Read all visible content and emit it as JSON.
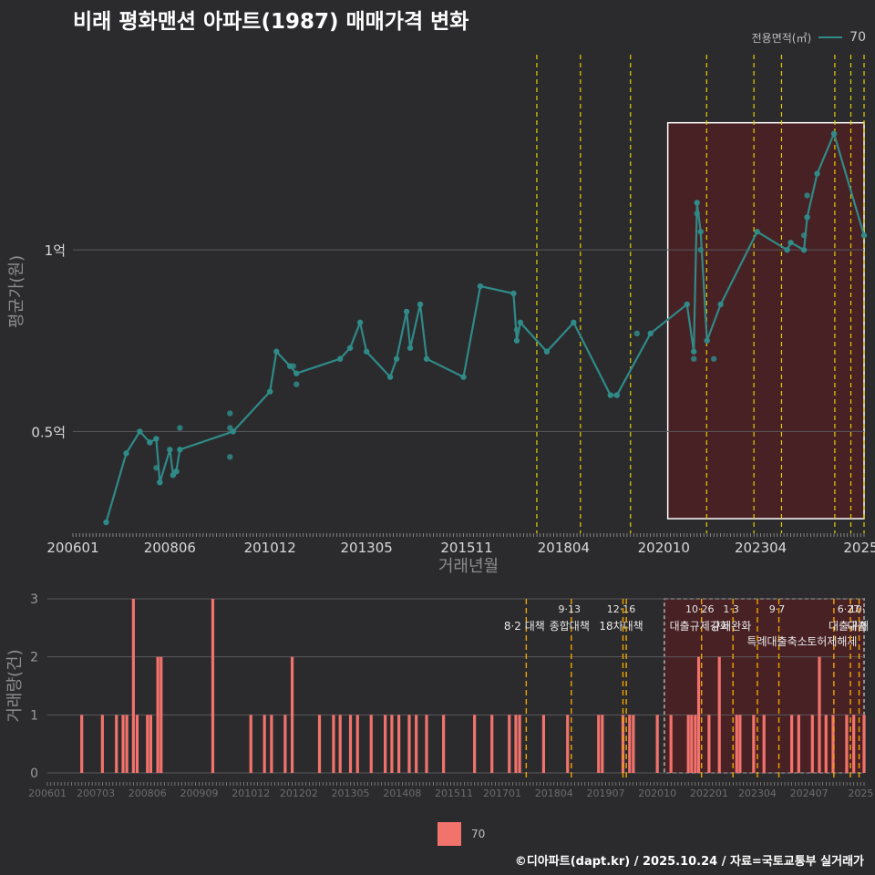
{
  "title": "비래 평화맨션 아파트(1987) 매매가격 변화",
  "legend_top": {
    "title": "전용면적(㎡)",
    "label": "70"
  },
  "legend_bottom": {
    "label": "70"
  },
  "footer": "©디아파트(dapt.kr) / 2025.10.24 / 자료=국토교통부 실거래가",
  "colors": {
    "background": "#2b2b2d",
    "line": "#2f8a88",
    "bar": "#f2726c",
    "vline": "#e6d000",
    "vline_bottom": "#f0a500",
    "highlight": "#4e2023"
  },
  "chart_data": [
    {
      "type": "line",
      "title": "비래 평화맨션 아파트(1987) 매매가격 변화",
      "xlabel": "거래년월",
      "ylabel": "평균가(원)",
      "ylim": [
        0.22,
        1.55
      ],
      "yticks": [
        {
          "value": 0.5,
          "label": "0.5억"
        },
        {
          "value": 1.0,
          "label": "1억"
        }
      ],
      "xlim": [
        2006.0,
        2025.75
      ],
      "xticks": [
        {
          "value": 2006.0,
          "label": "200601"
        },
        {
          "value": 2008.42,
          "label": "200806"
        },
        {
          "value": 2010.92,
          "label": "201012"
        },
        {
          "value": 2013.33,
          "label": "201305"
        },
        {
          "value": 2015.83,
          "label": "201511"
        },
        {
          "value": 2018.25,
          "label": "201804"
        },
        {
          "value": 2020.75,
          "label": "202010"
        },
        {
          "value": 2023.17,
          "label": "202304"
        },
        {
          "value": 2025.67,
          "label": "2025"
        }
      ],
      "event_lines": [
        2017.58,
        2018.67,
        2019.92,
        2021.82,
        2023.0,
        2023.69,
        2025.02,
        2025.42,
        2025.75
      ],
      "highlight_range": [
        2020.85,
        2025.75,
        0.26,
        1.35
      ],
      "series": [
        {
          "name": "70",
          "values": [
            [
              2006.83,
              0.25
            ],
            [
              2007.33,
              0.44
            ],
            [
              2007.67,
              0.5
            ],
            [
              2007.92,
              0.47
            ],
            [
              2008.08,
              0.48
            ],
            [
              2008.17,
              0.36
            ],
            [
              2008.42,
              0.45
            ],
            [
              2008.5,
              0.38
            ],
            [
              2008.58,
              0.39
            ],
            [
              2008.67,
              0.45
            ],
            [
              2010.0,
              0.5
            ],
            [
              2010.92,
              0.61
            ],
            [
              2011.08,
              0.72
            ],
            [
              2011.42,
              0.68
            ],
            [
              2011.58,
              0.66
            ],
            [
              2012.67,
              0.7
            ],
            [
              2012.92,
              0.73
            ],
            [
              2013.17,
              0.8
            ],
            [
              2013.33,
              0.72
            ],
            [
              2013.92,
              0.65
            ],
            [
              2014.08,
              0.7
            ],
            [
              2014.33,
              0.83
            ],
            [
              2014.42,
              0.73
            ],
            [
              2014.67,
              0.85
            ],
            [
              2014.83,
              0.7
            ],
            [
              2015.75,
              0.65
            ],
            [
              2016.17,
              0.9
            ],
            [
              2017.0,
              0.88
            ],
            [
              2017.08,
              0.75
            ],
            [
              2017.17,
              0.8
            ],
            [
              2017.83,
              0.72
            ],
            [
              2018.5,
              0.8
            ],
            [
              2019.42,
              0.6
            ],
            [
              2019.58,
              0.6
            ],
            [
              2020.42,
              0.77
            ],
            [
              2021.33,
              0.85
            ],
            [
              2021.5,
              0.72
            ],
            [
              2021.58,
              1.13
            ],
            [
              2021.67,
              1.05
            ],
            [
              2021.83,
              0.75
            ],
            [
              2022.17,
              0.85
            ],
            [
              2023.08,
              1.05
            ],
            [
              2023.83,
              1.0
            ],
            [
              2023.92,
              1.02
            ],
            [
              2024.25,
              1.0
            ],
            [
              2024.33,
              1.09
            ],
            [
              2024.58,
              1.21
            ],
            [
              2025.0,
              1.32
            ],
            [
              2025.75,
              1.04
            ]
          ]
        }
      ],
      "extra_points": [
        [
          2007.92,
          0.47
        ],
        [
          2008.08,
          0.4
        ],
        [
          2008.17,
          0.36
        ],
        [
          2008.58,
          0.39
        ],
        [
          2008.67,
          0.51
        ],
        [
          2009.92,
          0.55
        ],
        [
          2009.92,
          0.43
        ],
        [
          2009.92,
          0.51
        ],
        [
          2011.5,
          0.68
        ],
        [
          2011.58,
          0.63
        ],
        [
          2017.08,
          0.78
        ],
        [
          2020.08,
          0.77
        ],
        [
          2021.5,
          0.7
        ],
        [
          2021.58,
          1.1
        ],
        [
          2021.67,
          1.0
        ],
        [
          2022.0,
          0.7
        ],
        [
          2024.25,
          1.04
        ],
        [
          2024.33,
          1.15
        ]
      ]
    },
    {
      "type": "bar",
      "xlabel": "",
      "ylabel": "거래량(건)",
      "ylim": [
        0,
        3
      ],
      "yticks": [
        {
          "value": 0,
          "label": "0"
        },
        {
          "value": 1,
          "label": "1"
        },
        {
          "value": 2,
          "label": "2"
        },
        {
          "value": 3,
          "label": "3"
        }
      ],
      "xlim": [
        2006.0,
        2025.75
      ],
      "xticks": [
        {
          "value": 2006.0,
          "label": "200601"
        },
        {
          "value": 2007.17,
          "label": "200703"
        },
        {
          "value": 2008.42,
          "label": "200806"
        },
        {
          "value": 2009.67,
          "label": "200909"
        },
        {
          "value": 2010.92,
          "label": "201012"
        },
        {
          "value": 2012.08,
          "label": "201202"
        },
        {
          "value": 2013.33,
          "label": "201305"
        },
        {
          "value": 2014.58,
          "label": "201408"
        },
        {
          "value": 2015.83,
          "label": "201511"
        },
        {
          "value": 2017.0,
          "label": "201701"
        },
        {
          "value": 2018.25,
          "label": "201804"
        },
        {
          "value": 2019.5,
          "label": "201907"
        },
        {
          "value": 2020.75,
          "label": "202010"
        },
        {
          "value": 2022.0,
          "label": "202201"
        },
        {
          "value": 2023.17,
          "label": "202304"
        },
        {
          "value": 2024.42,
          "label": "202407"
        },
        {
          "value": 2025.67,
          "label": "2025"
        }
      ],
      "highlight_range": [
        2020.92,
        2025.75
      ],
      "events": [
        {
          "x": 2017.58,
          "date": "",
          "text": "8·2 대책"
        },
        {
          "x": 2018.67,
          "date": "9·13",
          "text": "종합대책"
        },
        {
          "x": 2019.92,
          "date": "12·16",
          "text": "18차대책"
        },
        {
          "x": 2020.0,
          "date": "",
          "text": ""
        },
        {
          "x": 2021.82,
          "date": "10·26",
          "text": "대출규제강화"
        },
        {
          "x": 2022.58,
          "date": "1·3",
          "text": "규제완화"
        },
        {
          "x": 2023.17,
          "date": "",
          "text": ""
        },
        {
          "x": 2023.69,
          "date": "9·7",
          "text": "특례대출축소"
        },
        {
          "x": 2025.02,
          "date": "",
          "text": "토허제해제"
        },
        {
          "x": 2025.42,
          "date": "6·27",
          "text": "대출규제"
        },
        {
          "x": 2025.63,
          "date": "10·",
          "text": "대출"
        }
      ],
      "series": [
        {
          "name": "70",
          "values": [
            [
              2006.83,
              1
            ],
            [
              2007.33,
              1
            ],
            [
              2007.67,
              1
            ],
            [
              2007.83,
              1
            ],
            [
              2007.92,
              1
            ],
            [
              2008.08,
              3
            ],
            [
              2008.17,
              1
            ],
            [
              2008.42,
              1
            ],
            [
              2008.5,
              1
            ],
            [
              2008.67,
              2
            ],
            [
              2008.75,
              2
            ],
            [
              2010.0,
              3
            ],
            [
              2010.92,
              1
            ],
            [
              2011.25,
              1
            ],
            [
              2011.42,
              1
            ],
            [
              2011.75,
              1
            ],
            [
              2011.92,
              2
            ],
            [
              2012.58,
              1
            ],
            [
              2012.92,
              1
            ],
            [
              2013.08,
              1
            ],
            [
              2013.33,
              1
            ],
            [
              2013.5,
              1
            ],
            [
              2013.83,
              1
            ],
            [
              2014.17,
              1
            ],
            [
              2014.33,
              1
            ],
            [
              2014.5,
              1
            ],
            [
              2014.75,
              1
            ],
            [
              2014.92,
              1
            ],
            [
              2015.17,
              1
            ],
            [
              2015.58,
              1
            ],
            [
              2016.33,
              1
            ],
            [
              2016.75,
              1
            ],
            [
              2017.17,
              1
            ],
            [
              2017.33,
              1
            ],
            [
              2017.42,
              1
            ],
            [
              2018.0,
              1
            ],
            [
              2018.58,
              1
            ],
            [
              2019.33,
              1
            ],
            [
              2019.42,
              1
            ],
            [
              2019.92,
              1
            ],
            [
              2020.08,
              1
            ],
            [
              2020.17,
              1
            ],
            [
              2020.75,
              1
            ],
            [
              2021.08,
              1
            ],
            [
              2021.5,
              1
            ],
            [
              2021.58,
              1
            ],
            [
              2021.67,
              1
            ],
            [
              2021.75,
              2
            ],
            [
              2022.0,
              1
            ],
            [
              2022.25,
              2
            ],
            [
              2022.67,
              1
            ],
            [
              2022.75,
              1
            ],
            [
              2023.08,
              1
            ],
            [
              2023.33,
              1
            ],
            [
              2024.0,
              1
            ],
            [
              2024.17,
              1
            ],
            [
              2024.5,
              1
            ],
            [
              2024.67,
              2
            ],
            [
              2024.83,
              1
            ],
            [
              2025.0,
              1
            ],
            [
              2025.33,
              1
            ],
            [
              2025.5,
              1
            ],
            [
              2025.75,
              1
            ]
          ]
        }
      ]
    }
  ]
}
